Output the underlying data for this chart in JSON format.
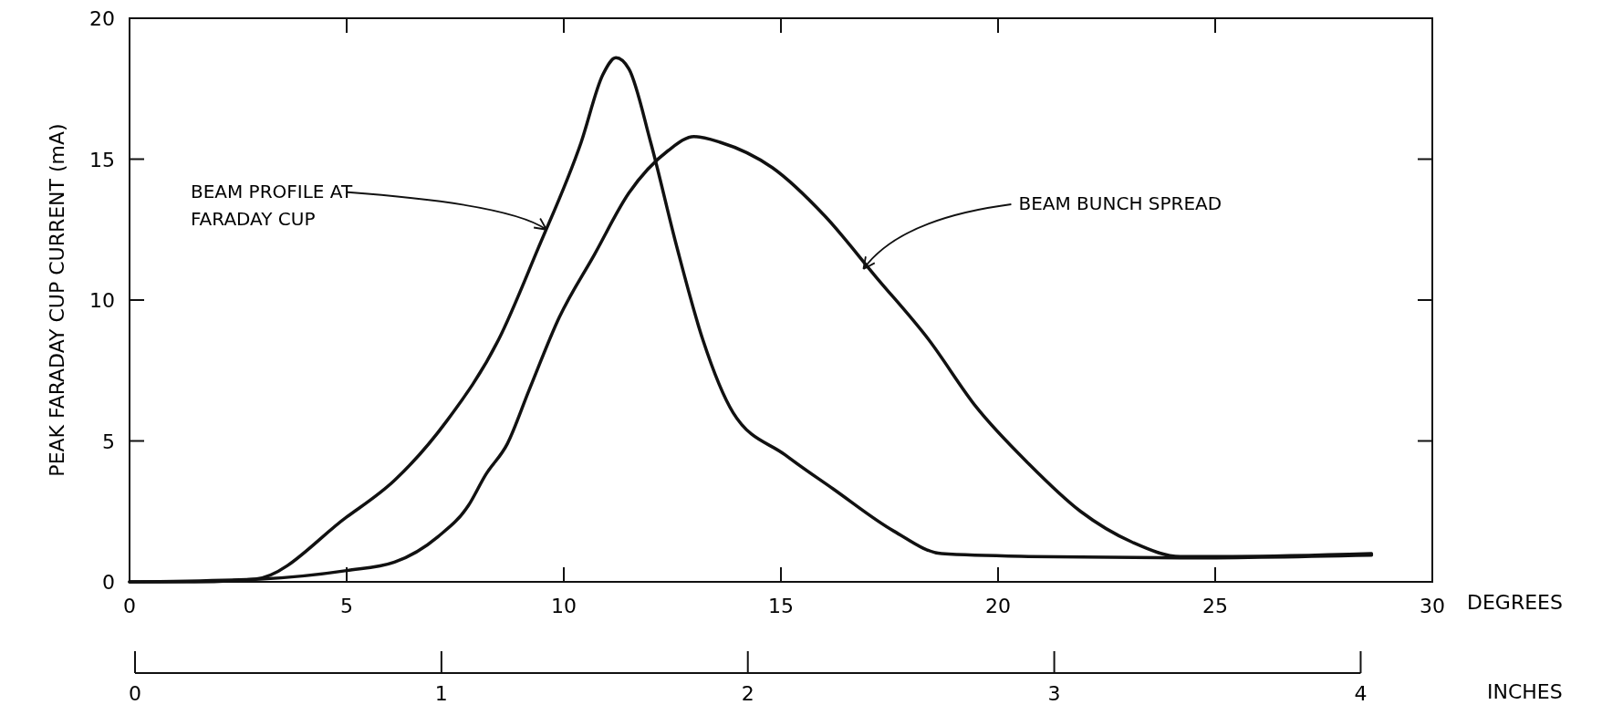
{
  "chart_data": {
    "type": "line",
    "xlabel": "DEGREES",
    "ylabel": "PEAK FARADAY CUP CURRENT (mA)",
    "x2label": "INCHES",
    "xlim": [
      0,
      30
    ],
    "xticks": [
      0,
      5,
      10,
      15,
      20,
      25,
      30
    ],
    "ylim": [
      0,
      20
    ],
    "yticks": [
      0,
      5,
      10,
      15,
      20
    ],
    "x2lim": [
      0,
      4
    ],
    "x2ticks": [
      0,
      1,
      2,
      3,
      4
    ],
    "grid": false,
    "line_style": "solid",
    "series": [
      {
        "color": "#111111",
        "x": [
          0,
          1.5,
          2.9,
          5,
          6.1,
          7.3,
          8.5,
          9.4,
          10.4,
          10.9,
          11.2,
          11.5,
          12.0,
          12.6,
          13.2,
          13.9,
          15.1,
          16.2,
          17.6,
          18.7,
          20.7,
          24.2,
          28.6
        ],
        "values": [
          0,
          0,
          0.1,
          2.3,
          3.6,
          5.7,
          8.6,
          11.8,
          15.6,
          18.0,
          18.6,
          18.2,
          15.6,
          11.9,
          8.6,
          6.0,
          4.5,
          3.3,
          1.8,
          1.0,
          0.9,
          0.85,
          0.95
        ]
      },
      {
        "color": "#111111",
        "x": [
          0,
          3,
          5,
          6.1,
          7.1,
          7.8,
          8.2,
          8.7,
          9.2,
          9.9,
          10.7,
          11.5,
          12.4,
          13.0,
          13.6,
          14.8,
          16.0,
          17.2,
          18.4,
          19.5,
          20.7,
          21.9,
          23.1,
          24.2,
          25.4,
          28.6
        ],
        "values": [
          0,
          0.1,
          0.4,
          0.7,
          1.6,
          2.7,
          3.8,
          4.9,
          6.8,
          9.4,
          11.6,
          13.8,
          15.3,
          15.8,
          15.6,
          14.7,
          13.0,
          10.8,
          8.6,
          6.2,
          4.2,
          2.5,
          1.4,
          0.9,
          0.9,
          1.0
        ]
      }
    ],
    "annotations": [
      {
        "text": "BEAM PROFILE AT\nFARADAY CUP",
        "x": 9.6,
        "y": 12.5
      },
      {
        "text": "BEAM BUNCH SPREAD",
        "x": 16.9,
        "y": 11.1
      }
    ]
  }
}
